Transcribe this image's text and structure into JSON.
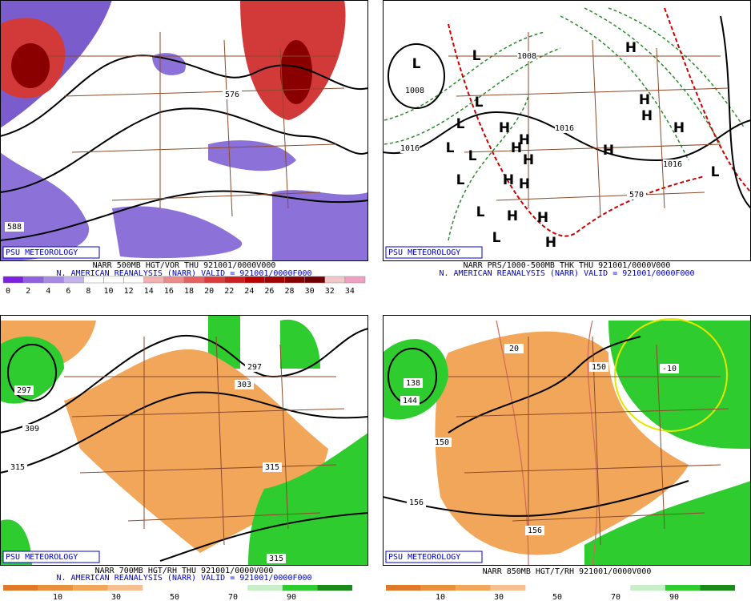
{
  "panels": [
    {
      "logo": "PSU METEOROLOGY",
      "title": "NARR 500MB HGT/VOR THU 921001/0000V000",
      "subtitle": "N. AMERICAN REANALYSIS (NARR) VALID = 921001/0000F000",
      "colorbar_labels": [
        "0",
        "2",
        "4",
        "6",
        "8",
        "10",
        "12",
        "14",
        "16",
        "18",
        "20",
        "22",
        "24",
        "26",
        "28",
        "30",
        "32",
        "34"
      ],
      "contour_labels": [
        "588",
        "576"
      ]
    },
    {
      "logo": "PSU METEOROLOGY",
      "title": "NARR PRS/1000-500MB THK THU 921001/0000V000",
      "subtitle": "N. AMERICAN REANALYSIS (NARR) VALID = 921001/0000F000",
      "contour_labels": [
        "1008",
        "1016",
        "1008",
        "1016",
        "1016",
        "570"
      ],
      "low_label": "L",
      "high_label": "H"
    },
    {
      "logo": "PSU METEOROLOGY",
      "title": "NARR 700MB HGT/RH THU 921001/0000V000",
      "subtitle": "N. AMERICAN REANALYSIS (NARR) VALID = 921001/0000F000",
      "colorbar_labels": [
        "10",
        "30",
        "50",
        "70",
        "90"
      ],
      "contour_labels": [
        "297",
        "309",
        "315",
        "315",
        "303",
        "297",
        "315"
      ]
    },
    {
      "logo": "PSU METEOROLOGY",
      "title": "NARR 850MB HGT/T/RH 921001/0000V000",
      "colorbar_labels": [
        "10",
        "30",
        "50",
        "70",
        "90"
      ],
      "contour_labels": [
        "150",
        "156",
        "156",
        "150",
        "144",
        "-10",
        "20",
        "138"
      ]
    }
  ]
}
